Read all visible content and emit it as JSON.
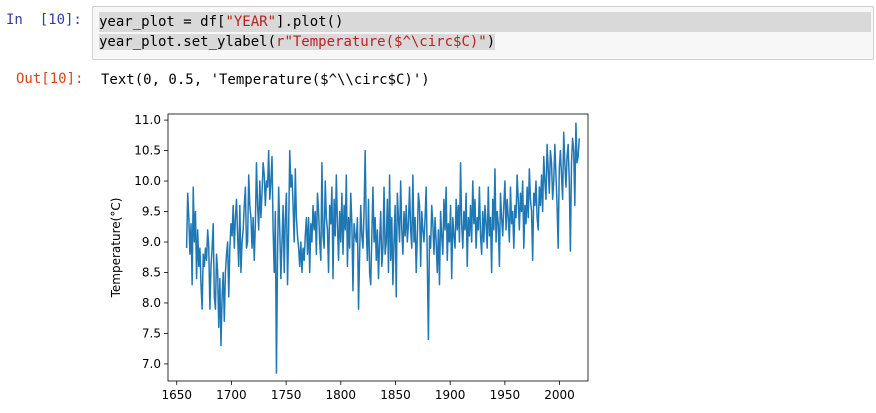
{
  "cell": {
    "in_prompt": "In  [10]:",
    "out_prompt": "Out[10]:",
    "code_line1_pre": "year_plot = df[",
    "code_line1_str": "\"YEAR\"",
    "code_line1_post": "].plot()",
    "code_line2_pre": "year_plot.set_ylabel(",
    "code_line2_str": "r\"Temperature($^\\circ$C)\"",
    "code_line2_post": ")",
    "output": "Text(0, 0.5, 'Temperature($^\\\\circ$C)')"
  },
  "colors": {
    "line": "#1f77b4",
    "in_prompt": "#303f9f",
    "out_prompt": "#d84315",
    "string": "#ba2121"
  },
  "chart_data": {
    "type": "line",
    "ylabel": "Temperature(°C)",
    "xlim": [
      1642,
      2026
    ],
    "ylim": [
      6.72,
      11.1
    ],
    "xticks": [
      1650,
      1700,
      1750,
      1800,
      1850,
      1900,
      1950,
      2000
    ],
    "yticks": [
      7.0,
      7.5,
      8.0,
      8.5,
      9.0,
      9.5,
      10.0,
      10.5,
      11.0
    ],
    "x_start": 1659,
    "x_end": 2018,
    "series": [
      {
        "values": [
          8.9,
          9.8,
          9.4,
          8.8,
          9.3,
          8.3,
          9.9,
          9.0,
          9.5,
          8.4,
          9.2,
          8.6,
          8.9,
          8.3,
          7.9,
          8.8,
          8.6,
          8.9,
          8.7,
          9.2,
          8.9,
          7.9,
          8.6,
          8.9,
          9.3,
          8.1,
          7.9,
          8.8,
          8.5,
          7.6,
          8.4,
          7.3,
          8.1,
          8.5,
          7.7,
          8.5,
          8.8,
          9.0,
          8.1,
          8.9,
          9.3,
          9.1,
          9.6,
          8.9,
          9.4,
          9.7,
          9.1,
          8.6,
          9.6,
          8.5,
          9.0,
          9.2,
          9.6,
          9.9,
          8.9,
          9.0,
          10.1,
          9.6,
          9.4,
          8.9,
          9.4,
          8.7,
          9.3,
          10.3,
          9.6,
          9.2,
          10.0,
          9.4,
          9.8,
          10.3,
          10.1,
          9.6,
          10.0,
          9.9,
          10.5,
          9.7,
          10.0,
          10.4,
          9.2,
          8.5,
          9.5,
          6.85,
          8.8,
          9.9,
          9.2,
          8.4,
          9.0,
          9.6,
          8.5,
          9.4,
          9.8,
          8.3,
          9.2,
          10.5,
          9.9,
          10.1,
          9.6,
          9.0,
          10.2,
          9.4,
          9.1,
          8.9,
          8.6,
          9.0,
          8.5,
          8.9,
          8.7,
          9.1,
          9.4,
          8.8,
          9.4,
          8.5,
          9.3,
          9.0,
          9.6,
          9.2,
          9.5,
          8.8,
          9.8,
          9.5,
          9.0,
          8.7,
          10.3,
          9.1,
          8.9,
          10.0,
          9.4,
          9.2,
          8.5,
          9.6,
          9.3,
          9.9,
          8.4,
          9.7,
          9.1,
          10.1,
          9.3,
          8.7,
          9.5,
          9.0,
          9.8,
          8.8,
          9.6,
          9.2,
          10.1,
          8.6,
          9.4,
          8.9,
          9.8,
          9.3,
          8.2,
          9.3,
          9.1,
          9.0,
          9.4,
          7.9,
          8.8,
          9.6,
          9.1,
          8.9,
          9.5,
          10.5,
          9.2,
          8.7,
          9.7,
          8.5,
          8.3,
          9.1,
          9.9,
          9.0,
          9.4,
          8.7,
          9.2,
          8.4,
          9.0,
          9.5,
          8.6,
          8.9,
          9.9,
          8.8,
          9.0,
          9.7,
          8.5,
          10.1,
          8.7,
          9.4,
          8.3,
          9.0,
          9.6,
          8.1,
          9.8,
          9.4,
          9.0,
          10.0,
          9.2,
          8.8,
          9.5,
          9.1,
          9.6,
          9.0,
          9.3,
          9.9,
          9.2,
          8.9,
          10.1,
          9.0,
          9.4,
          8.5,
          9.1,
          9.8,
          9.6,
          8.6,
          9.5,
          9.2,
          9.0,
          9.4,
          9.9,
          8.7,
          7.4,
          9.1,
          8.9,
          9.6,
          9.3,
          8.8,
          9.4,
          9.0,
          8.5,
          9.2,
          8.3,
          9.5,
          9.1,
          8.8,
          9.7,
          9.2,
          9.9,
          8.7,
          9.3,
          9.0,
          9.6,
          8.4,
          9.4,
          9.1,
          8.9,
          9.7,
          9.2,
          9.6,
          9.0,
          10.3,
          9.3,
          8.9,
          9.5,
          9.2,
          9.8,
          8.6,
          9.4,
          9.1,
          9.6,
          9.0,
          10.0,
          9.3,
          9.7,
          8.9,
          9.4,
          9.2,
          9.9,
          9.1,
          8.8,
          9.5,
          9.0,
          9.6,
          9.3,
          8.9,
          9.9,
          9.1,
          9.4,
          8.5,
          9.7,
          9.2,
          10.2,
          9.0,
          9.5,
          9.3,
          8.6,
          9.8,
          9.4,
          9.1,
          9.6,
          10.0,
          9.2,
          9.7,
          9.4,
          9.0,
          9.9,
          9.3,
          9.5,
          8.9,
          9.6,
          9.4,
          10.1,
          9.7,
          9.2,
          9.8,
          9.5,
          10.0,
          8.9,
          9.6,
          9.3,
          9.9,
          9.4,
          10.2,
          9.7,
          9.5,
          8.7,
          9.8,
          9.6,
          10.0,
          9.4,
          9.2,
          9.9,
          9.6,
          10.1,
          9.5,
          10.4,
          10.0,
          9.7,
          10.6,
          10.2,
          9.8,
          10.5,
          10.3,
          9.7,
          10.0,
          10.6,
          10.1,
          9.6,
          8.9,
          10.2,
          10.5,
          10.1,
          9.7,
          10.8,
          10.3,
          9.9,
          10.4,
          10.6,
          10.0,
          8.85,
          10.3,
          10.7,
          10.5,
          9.6,
          10.95,
          10.3,
          10.4,
          10.7
        ]
      }
    ]
  }
}
